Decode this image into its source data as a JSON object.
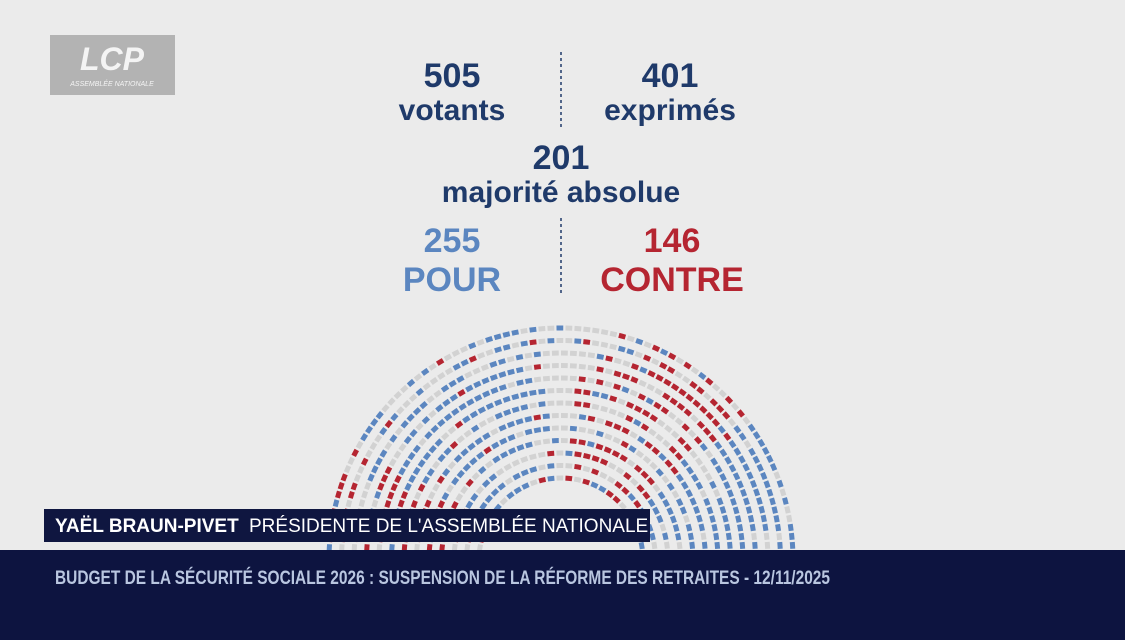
{
  "logo": {
    "brand": "LCP",
    "subtitle": "ASSEMBLÉE NATIONALE"
  },
  "vote": {
    "votants": {
      "number": 505,
      "label": "votants"
    },
    "exprimes": {
      "number": 401,
      "label": "exprimés"
    },
    "majorite": {
      "number": 201,
      "label": "majorité absolue"
    },
    "pour": {
      "number": 255,
      "label": "POUR"
    },
    "contre": {
      "number": 146,
      "label": "CONTRE"
    }
  },
  "lower_third": {
    "name": "YAËL BRAUN-PIVET",
    "role": "PRÉSIDENTE DE L'ASSEMBLÉE NATIONALE"
  },
  "ticker": {
    "text": "BUDGET DE LA SÉCURITÉ SOCIALE 2026 : SUSPENSION DE LA RÉFORME DES RETRAITES - 12/11/2025"
  }
}
